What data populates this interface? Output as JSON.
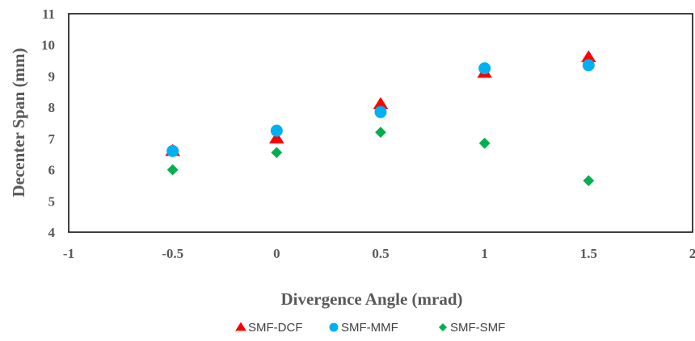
{
  "chart_data": {
    "type": "scatter",
    "title": "",
    "xlabel": "Divergence Angle (mrad)",
    "ylabel": "Decenter Span (mm)",
    "xlim": [
      -1,
      2
    ],
    "ylim": [
      4,
      11
    ],
    "xticks": [
      -1,
      -0.5,
      0,
      0.5,
      1,
      1.5,
      2
    ],
    "yticks": [
      4,
      5,
      6,
      7,
      8,
      9,
      10,
      11
    ],
    "grid": false,
    "legend_position": "bottom",
    "series": [
      {
        "name": "SMF-DCF",
        "marker": "triangle",
        "color": "#ff0000",
        "x": [
          -0.5,
          0,
          0.5,
          1,
          1.5
        ],
        "y": [
          6.6,
          7.0,
          8.1,
          9.1,
          9.6
        ]
      },
      {
        "name": "SMF-MMF",
        "marker": "circle",
        "color": "#00b0f0",
        "x": [
          -0.5,
          0,
          0.5,
          1,
          1.5
        ],
        "y": [
          6.6,
          7.25,
          7.85,
          9.25,
          9.35
        ]
      },
      {
        "name": "SMF-SMF",
        "marker": "diamond",
        "color": "#00b050",
        "x": [
          -0.5,
          0,
          0.5,
          1,
          1.5
        ],
        "y": [
          6.0,
          6.55,
          7.2,
          6.85,
          5.65
        ]
      }
    ]
  }
}
